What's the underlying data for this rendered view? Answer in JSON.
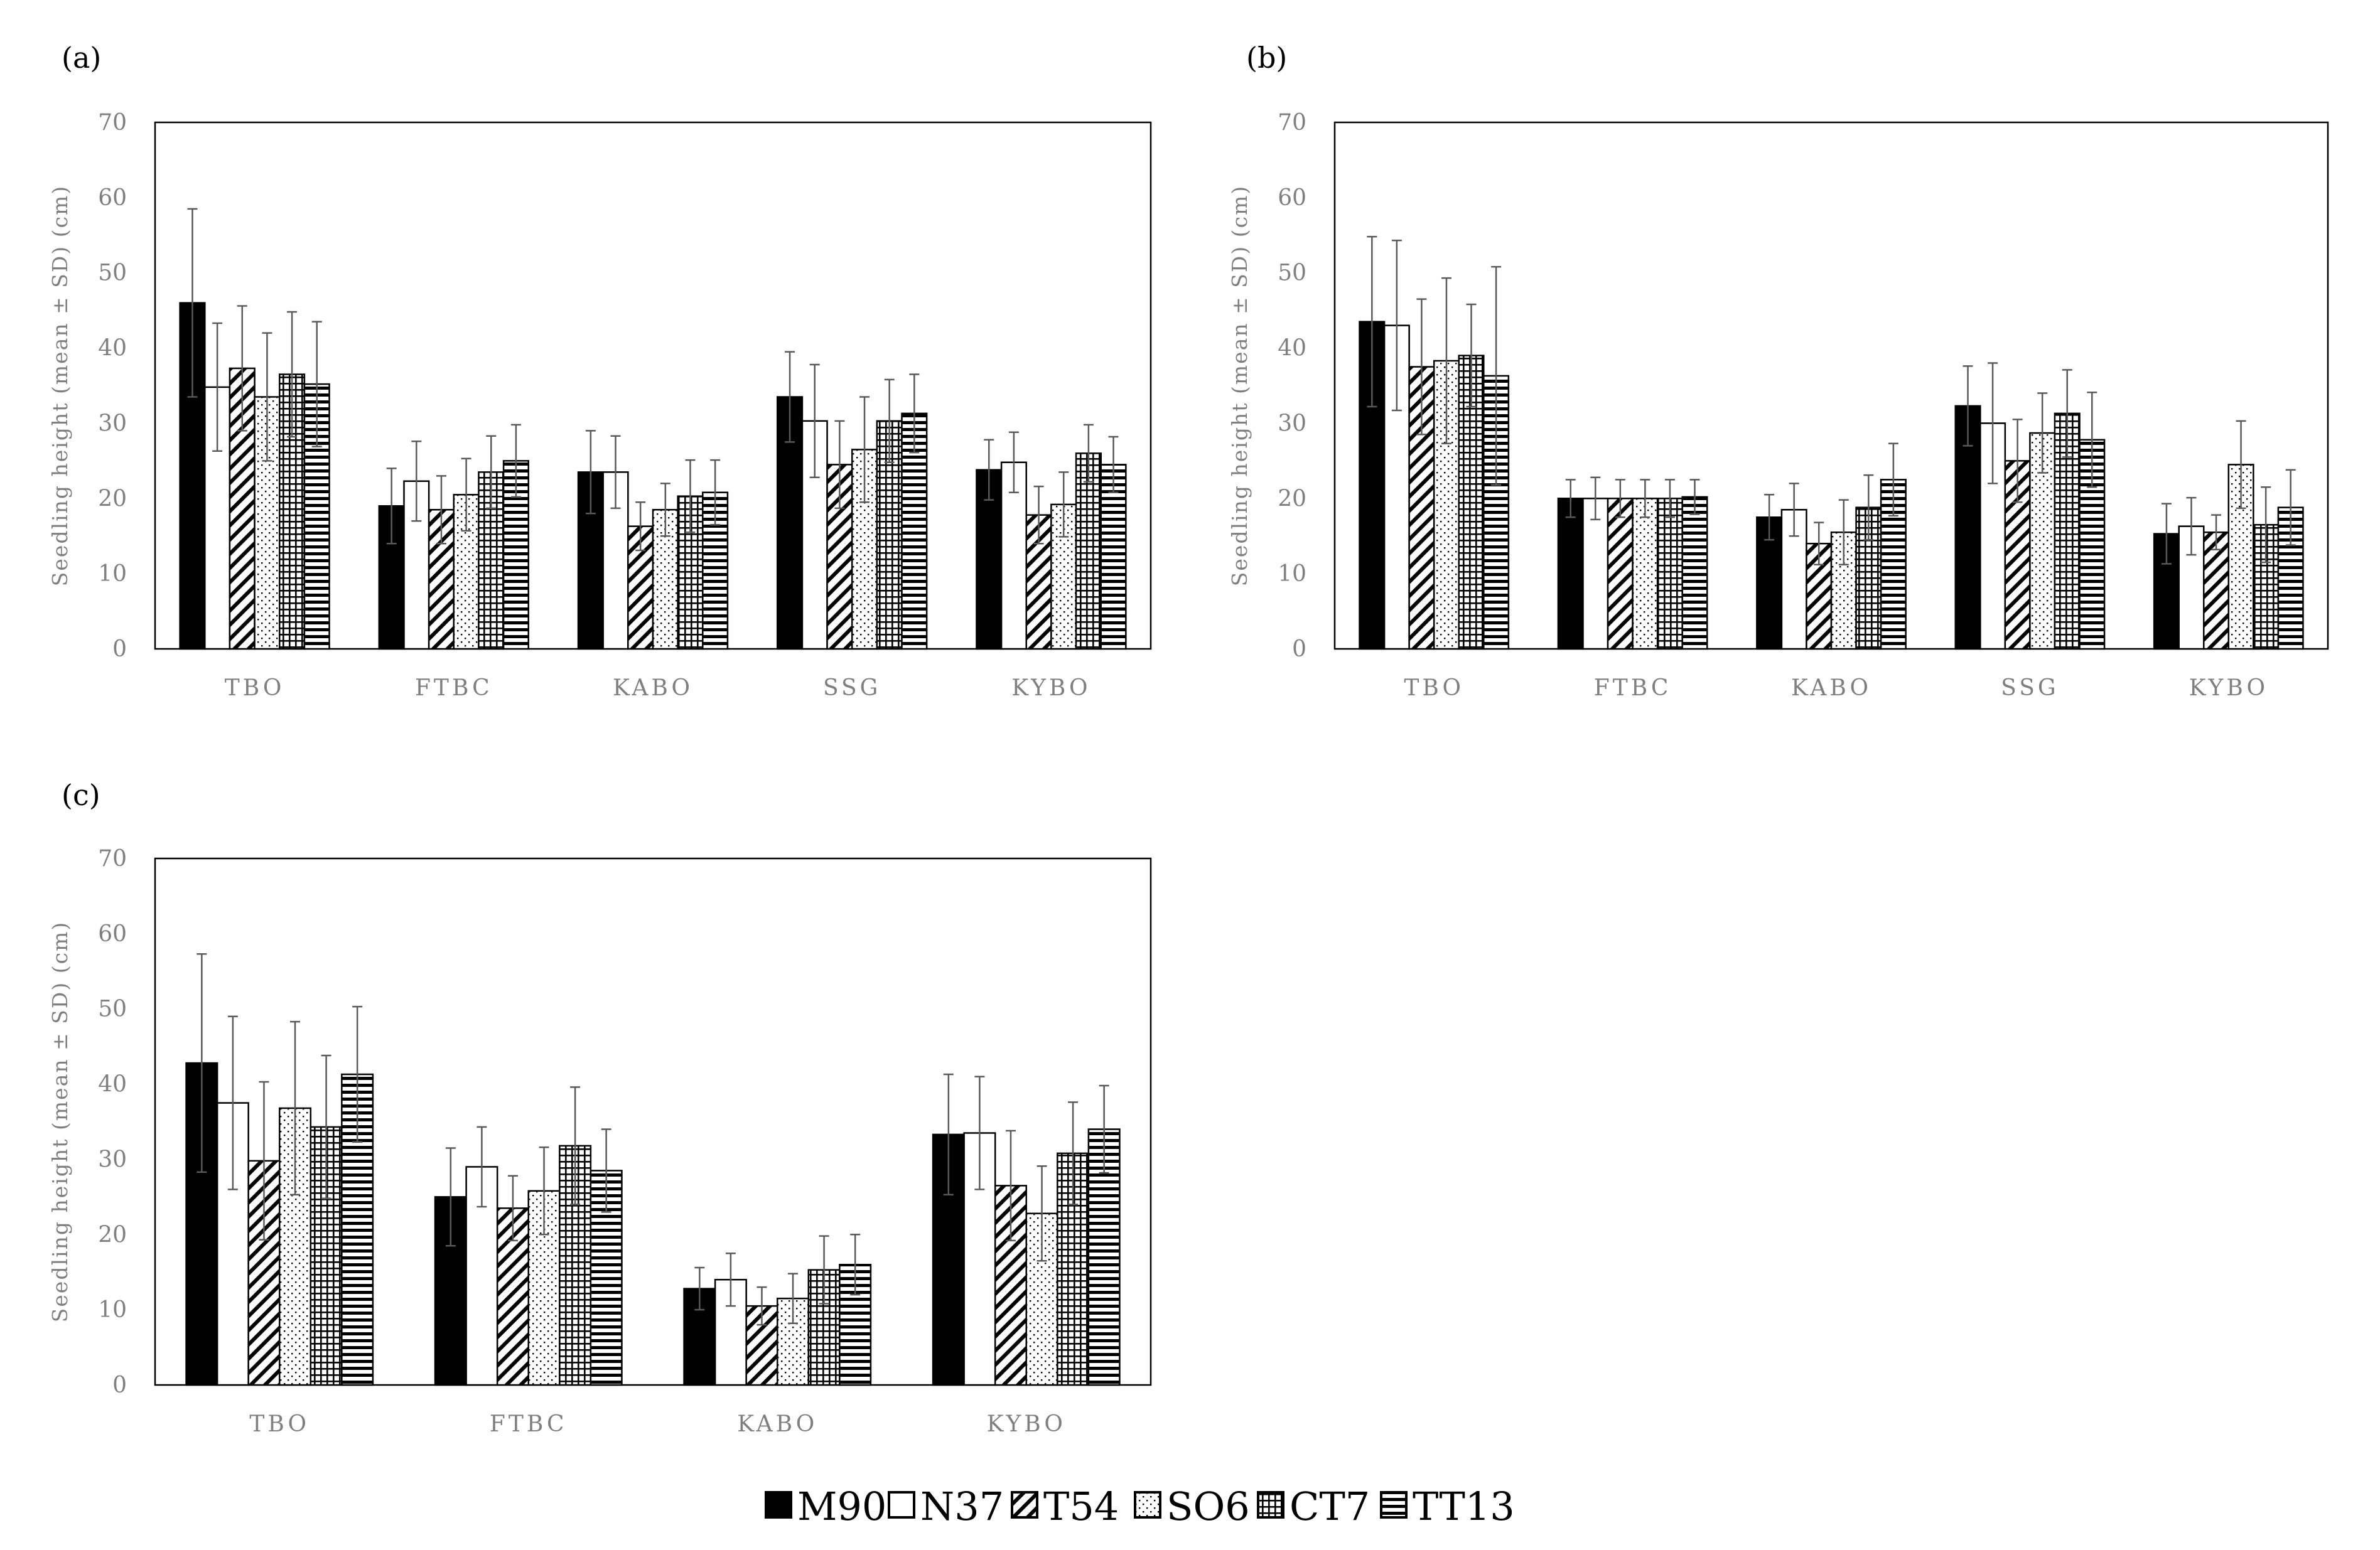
{
  "chart_data": [
    {
      "type": "bar",
      "panel_label": "(a)",
      "ylabel": "Seedling height (mean ± SD) (cm)",
      "ylim": [
        0,
        70
      ],
      "yticks": [
        0,
        10,
        20,
        30,
        40,
        50,
        60,
        70
      ],
      "categories": [
        "TBO",
        "FTBC",
        "KABO",
        "SSG",
        "KYBO"
      ],
      "series": [
        {
          "name": "M90",
          "values": [
            46.0,
            19.0,
            23.5,
            33.5,
            23.8
          ],
          "sd": [
            12.5,
            5.0,
            5.5,
            6.0,
            4.0
          ]
        },
        {
          "name": "N37",
          "values": [
            34.8,
            22.3,
            23.5,
            30.3,
            24.8
          ],
          "sd": [
            8.5,
            5.3,
            4.8,
            7.5,
            4.0
          ]
        },
        {
          "name": "T54",
          "values": [
            37.3,
            18.5,
            16.3,
            24.5,
            17.8
          ],
          "sd": [
            8.3,
            4.5,
            3.2,
            5.8,
            3.8
          ]
        },
        {
          "name": "SO6",
          "values": [
            33.5,
            20.5,
            18.5,
            26.5,
            19.2
          ],
          "sd": [
            8.5,
            4.8,
            3.5,
            7.0,
            4.3
          ]
        },
        {
          "name": "CT7",
          "values": [
            36.5,
            23.5,
            20.3,
            30.3,
            26.0
          ],
          "sd": [
            8.3,
            4.8,
            4.8,
            5.5,
            3.8
          ]
        },
        {
          "name": "TT13",
          "values": [
            35.2,
            25.0,
            20.8,
            31.3,
            24.5
          ],
          "sd": [
            8.3,
            4.8,
            4.3,
            5.2,
            3.7
          ]
        }
      ]
    },
    {
      "type": "bar",
      "panel_label": "(b)",
      "ylabel": "Seedling height (mean ± SD) (cm)",
      "ylim": [
        0,
        70
      ],
      "yticks": [
        0,
        10,
        20,
        30,
        40,
        50,
        60,
        70
      ],
      "categories": [
        "TBO",
        "FTBC",
        "KABO",
        "SSG",
        "KYBO"
      ],
      "series": [
        {
          "name": "M90",
          "values": [
            43.5,
            20.0,
            17.5,
            32.3,
            15.3
          ],
          "sd": [
            11.3,
            2.5,
            3.0,
            5.3,
            4.0
          ]
        },
        {
          "name": "N37",
          "values": [
            43.0,
            20.0,
            18.5,
            30.0,
            16.3
          ],
          "sd": [
            11.3,
            2.8,
            3.5,
            8.0,
            3.8
          ]
        },
        {
          "name": "T54",
          "values": [
            37.5,
            20.0,
            14.0,
            25.0,
            15.5
          ],
          "sd": [
            9.0,
            2.5,
            2.8,
            5.5,
            2.3
          ]
        },
        {
          "name": "SO6",
          "values": [
            38.3,
            20.0,
            15.5,
            28.7,
            24.5
          ],
          "sd": [
            11.0,
            2.5,
            4.3,
            5.3,
            5.8
          ]
        },
        {
          "name": "CT7",
          "values": [
            39.0,
            20.0,
            18.8,
            31.3,
            16.5
          ],
          "sd": [
            6.8,
            2.5,
            4.3,
            5.8,
            5.0
          ]
        },
        {
          "name": "TT13",
          "values": [
            36.3,
            20.2,
            22.5,
            27.8,
            18.8
          ],
          "sd": [
            14.5,
            2.3,
            4.8,
            6.3,
            5.0
          ]
        }
      ]
    },
    {
      "type": "bar",
      "panel_label": "(c)",
      "ylabel": "Seedling height (mean ± SD) (cm)",
      "ylim": [
        0,
        70
      ],
      "yticks": [
        0,
        10,
        20,
        30,
        40,
        50,
        60,
        70
      ],
      "categories": [
        "TBO",
        "FTBC",
        "KABO",
        "KYBO"
      ],
      "series": [
        {
          "name": "M90",
          "values": [
            42.8,
            25.0,
            12.8,
            33.3
          ],
          "sd": [
            14.5,
            6.5,
            2.8,
            8.0
          ]
        },
        {
          "name": "N37",
          "values": [
            37.5,
            29.0,
            14.0,
            33.5
          ],
          "sd": [
            11.5,
            5.3,
            3.5,
            7.5
          ]
        },
        {
          "name": "T54",
          "values": [
            29.8,
            23.5,
            10.5,
            26.5
          ],
          "sd": [
            10.5,
            4.3,
            2.5,
            7.3
          ]
        },
        {
          "name": "SO6",
          "values": [
            36.8,
            25.8,
            11.5,
            22.8
          ],
          "sd": [
            11.5,
            5.8,
            3.3,
            6.3
          ]
        },
        {
          "name": "CT7",
          "values": [
            34.3,
            31.8,
            15.3,
            30.8
          ],
          "sd": [
            9.5,
            7.8,
            4.5,
            6.8
          ]
        },
        {
          "name": "TT13",
          "values": [
            41.3,
            28.5,
            16.0,
            34.0
          ],
          "sd": [
            9.0,
            5.5,
            4.0,
            5.8
          ]
        }
      ]
    }
  ],
  "legend": {
    "items": [
      {
        "name": "M90",
        "pattern": "solid"
      },
      {
        "name": "N37",
        "pattern": "open"
      },
      {
        "name": "T54",
        "pattern": "diagonal"
      },
      {
        "name": "SO6",
        "pattern": "dotted"
      },
      {
        "name": "CT7",
        "pattern": "grid"
      },
      {
        "name": "TT13",
        "pattern": "horizontal"
      }
    ]
  }
}
